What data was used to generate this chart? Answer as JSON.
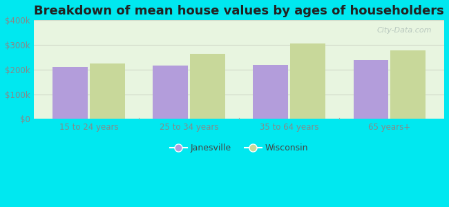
{
  "title": "Breakdown of mean house values by ages of householders",
  "categories": [
    "15 to 24 years",
    "25 to 34 years",
    "35 to 64 years",
    "65 years+"
  ],
  "janesville": [
    210000,
    215000,
    218000,
    238000
  ],
  "wisconsin": [
    225000,
    265000,
    305000,
    278000
  ],
  "bar_color_janesville": "#b39ddb",
  "bar_color_wisconsin": "#c8d89a",
  "ylim": [
    0,
    400000
  ],
  "yticks": [
    0,
    100000,
    200000,
    300000,
    400000
  ],
  "ytick_labels": [
    "$0",
    "$100k",
    "$200k",
    "$300k",
    "$400k"
  ],
  "background_color": "#00e8f0",
  "grid_color": "#d0d8c8",
  "title_fontsize": 13,
  "tick_fontsize": 8.5,
  "legend_janesville": "Janesville",
  "legend_wisconsin": "Wisconsin",
  "watermark": "City-Data.com"
}
